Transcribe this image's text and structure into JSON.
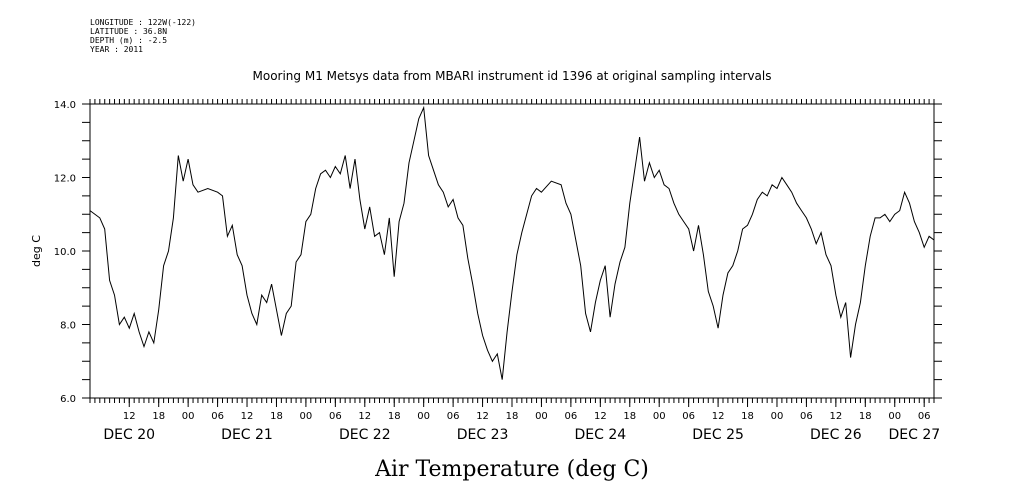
{
  "header": {
    "longitude": "LONGITUDE : 122W(-122)",
    "latitude": "LATITUDE : 36.8N",
    "depth": "DEPTH (m) : -2.5",
    "year": "YEAR : 2011"
  },
  "chart_data": {
    "type": "line",
    "title": "Mooring M1 Metsys data from MBARI instrument id 1396 at original sampling intervals",
    "xlabel": "Air Temperature (deg C)",
    "ylabel": "deg C",
    "ylim": [
      6.0,
      14.0
    ],
    "yticks": [
      "6.0",
      "8.0",
      "10.0",
      "12.0",
      "14.0"
    ],
    "xlim": [
      "2011-12-20T04:00",
      "2011-12-27T08:00"
    ],
    "hour_ticks": [
      {
        "t": "2011-12-20T12:00",
        "label": "12"
      },
      {
        "t": "2011-12-20T18:00",
        "label": "18"
      },
      {
        "t": "2011-12-21T00:00",
        "label": "00"
      },
      {
        "t": "2011-12-21T06:00",
        "label": "06"
      },
      {
        "t": "2011-12-21T12:00",
        "label": "12"
      },
      {
        "t": "2011-12-21T18:00",
        "label": "18"
      },
      {
        "t": "2011-12-22T00:00",
        "label": "00"
      },
      {
        "t": "2011-12-22T06:00",
        "label": "06"
      },
      {
        "t": "2011-12-22T12:00",
        "label": "12"
      },
      {
        "t": "2011-12-22T18:00",
        "label": "18"
      },
      {
        "t": "2011-12-23T00:00",
        "label": "00"
      },
      {
        "t": "2011-12-23T06:00",
        "label": "06"
      },
      {
        "t": "2011-12-23T12:00",
        "label": "12"
      },
      {
        "t": "2011-12-23T18:00",
        "label": "18"
      },
      {
        "t": "2011-12-24T00:00",
        "label": "00"
      },
      {
        "t": "2011-12-24T06:00",
        "label": "06"
      },
      {
        "t": "2011-12-24T12:00",
        "label": "12"
      },
      {
        "t": "2011-12-24T18:00",
        "label": "18"
      },
      {
        "t": "2011-12-25T00:00",
        "label": "00"
      },
      {
        "t": "2011-12-25T06:00",
        "label": "06"
      },
      {
        "t": "2011-12-25T12:00",
        "label": "12"
      },
      {
        "t": "2011-12-25T18:00",
        "label": "18"
      },
      {
        "t": "2011-12-26T00:00",
        "label": "00"
      },
      {
        "t": "2011-12-26T06:00",
        "label": "06"
      },
      {
        "t": "2011-12-26T12:00",
        "label": "12"
      },
      {
        "t": "2011-12-26T18:00",
        "label": "18"
      },
      {
        "t": "2011-12-27T00:00",
        "label": "00"
      },
      {
        "t": "2011-12-27T06:00",
        "label": "06"
      }
    ],
    "day_labels": [
      {
        "t": "2011-12-20T12:00",
        "label": "DEC 20"
      },
      {
        "t": "2011-12-21T12:00",
        "label": "DEC 21"
      },
      {
        "t": "2011-12-22T12:00",
        "label": "DEC 22"
      },
      {
        "t": "2011-12-23T12:00",
        "label": "DEC 23"
      },
      {
        "t": "2011-12-24T12:00",
        "label": "DEC 24"
      },
      {
        "t": "2011-12-25T12:00",
        "label": "DEC 25"
      },
      {
        "t": "2011-12-26T12:00",
        "label": "DEC 26"
      },
      {
        "t": "2011-12-27T04:00",
        "label": "DEC 27"
      }
    ],
    "grid": false,
    "series": [
      {
        "color": "#000000",
        "points": [
          [
            "2011-12-20T04:00",
            11.1
          ],
          [
            "2011-12-20T06:00",
            10.9
          ],
          [
            "2011-12-20T07:00",
            10.6
          ],
          [
            "2011-12-20T08:00",
            9.2
          ],
          [
            "2011-12-20T09:00",
            8.8
          ],
          [
            "2011-12-20T10:00",
            8.0
          ],
          [
            "2011-12-20T11:00",
            8.2
          ],
          [
            "2011-12-20T12:00",
            7.9
          ],
          [
            "2011-12-20T13:00",
            8.3
          ],
          [
            "2011-12-20T14:00",
            7.8
          ],
          [
            "2011-12-20T15:00",
            7.4
          ],
          [
            "2011-12-20T16:00",
            7.8
          ],
          [
            "2011-12-20T17:00",
            7.5
          ],
          [
            "2011-12-20T18:00",
            8.4
          ],
          [
            "2011-12-20T19:00",
            9.6
          ],
          [
            "2011-12-20T20:00",
            10.0
          ],
          [
            "2011-12-20T21:00",
            10.9
          ],
          [
            "2011-12-20T22:00",
            12.6
          ],
          [
            "2011-12-20T23:00",
            11.9
          ],
          [
            "2011-12-21T00:00",
            12.5
          ],
          [
            "2011-12-21T01:00",
            11.8
          ],
          [
            "2011-12-21T02:00",
            11.6
          ],
          [
            "2011-12-21T04:00",
            11.7
          ],
          [
            "2011-12-21T06:00",
            11.6
          ],
          [
            "2011-12-21T07:00",
            11.5
          ],
          [
            "2011-12-21T08:00",
            10.4
          ],
          [
            "2011-12-21T09:00",
            10.7
          ],
          [
            "2011-12-21T10:00",
            9.9
          ],
          [
            "2011-12-21T11:00",
            9.6
          ],
          [
            "2011-12-21T12:00",
            8.8
          ],
          [
            "2011-12-21T13:00",
            8.3
          ],
          [
            "2011-12-21T14:00",
            8.0
          ],
          [
            "2011-12-21T15:00",
            8.8
          ],
          [
            "2011-12-21T16:00",
            8.6
          ],
          [
            "2011-12-21T17:00",
            9.1
          ],
          [
            "2011-12-21T18:00",
            8.4
          ],
          [
            "2011-12-21T19:00",
            7.7
          ],
          [
            "2011-12-21T20:00",
            8.3
          ],
          [
            "2011-12-21T21:00",
            8.5
          ],
          [
            "2011-12-21T22:00",
            9.7
          ],
          [
            "2011-12-21T23:00",
            9.9
          ],
          [
            "2011-12-22T00:00",
            10.8
          ],
          [
            "2011-12-22T01:00",
            11.0
          ],
          [
            "2011-12-22T02:00",
            11.7
          ],
          [
            "2011-12-22T03:00",
            12.1
          ],
          [
            "2011-12-22T04:00",
            12.2
          ],
          [
            "2011-12-22T05:00",
            12.0
          ],
          [
            "2011-12-22T06:00",
            12.3
          ],
          [
            "2011-12-22T07:00",
            12.1
          ],
          [
            "2011-12-22T08:00",
            12.6
          ],
          [
            "2011-12-22T09:00",
            11.7
          ],
          [
            "2011-12-22T10:00",
            12.5
          ],
          [
            "2011-12-22T11:00",
            11.4
          ],
          [
            "2011-12-22T12:00",
            10.6
          ],
          [
            "2011-12-22T13:00",
            11.2
          ],
          [
            "2011-12-22T14:00",
            10.4
          ],
          [
            "2011-12-22T15:00",
            10.5
          ],
          [
            "2011-12-22T16:00",
            9.9
          ],
          [
            "2011-12-22T17:00",
            10.9
          ],
          [
            "2011-12-22T18:00",
            9.3
          ],
          [
            "2011-12-22T19:00",
            10.8
          ],
          [
            "2011-12-22T20:00",
            11.3
          ],
          [
            "2011-12-22T21:00",
            12.4
          ],
          [
            "2011-12-22T22:00",
            13.0
          ],
          [
            "2011-12-22T23:00",
            13.6
          ],
          [
            "2011-12-23T00:00",
            13.9
          ],
          [
            "2011-12-23T01:00",
            12.6
          ],
          [
            "2011-12-23T02:00",
            12.2
          ],
          [
            "2011-12-23T03:00",
            11.8
          ],
          [
            "2011-12-23T04:00",
            11.6
          ],
          [
            "2011-12-23T05:00",
            11.2
          ],
          [
            "2011-12-23T06:00",
            11.4
          ],
          [
            "2011-12-23T07:00",
            10.9
          ],
          [
            "2011-12-23T08:00",
            10.7
          ],
          [
            "2011-12-23T09:00",
            9.8
          ],
          [
            "2011-12-23T10:00",
            9.1
          ],
          [
            "2011-12-23T11:00",
            8.3
          ],
          [
            "2011-12-23T12:00",
            7.7
          ],
          [
            "2011-12-23T13:00",
            7.3
          ],
          [
            "2011-12-23T14:00",
            7.0
          ],
          [
            "2011-12-23T15:00",
            7.2
          ],
          [
            "2011-12-23T16:00",
            6.5
          ],
          [
            "2011-12-23T17:00",
            7.8
          ],
          [
            "2011-12-23T18:00",
            8.9
          ],
          [
            "2011-12-23T19:00",
            9.9
          ],
          [
            "2011-12-23T20:00",
            10.5
          ],
          [
            "2011-12-23T21:00",
            11.0
          ],
          [
            "2011-12-23T22:00",
            11.5
          ],
          [
            "2011-12-23T23:00",
            11.7
          ],
          [
            "2011-12-24T00:00",
            11.6
          ],
          [
            "2011-12-24T02:00",
            11.9
          ],
          [
            "2011-12-24T04:00",
            11.8
          ],
          [
            "2011-12-24T05:00",
            11.3
          ],
          [
            "2011-12-24T06:00",
            11.0
          ],
          [
            "2011-12-24T07:00",
            10.3
          ],
          [
            "2011-12-24T08:00",
            9.6
          ],
          [
            "2011-12-24T09:00",
            8.3
          ],
          [
            "2011-12-24T10:00",
            7.8
          ],
          [
            "2011-12-24T11:00",
            8.6
          ],
          [
            "2011-12-24T12:00",
            9.2
          ],
          [
            "2011-12-24T13:00",
            9.6
          ],
          [
            "2011-12-24T14:00",
            8.2
          ],
          [
            "2011-12-24T15:00",
            9.1
          ],
          [
            "2011-12-24T16:00",
            9.7
          ],
          [
            "2011-12-24T17:00",
            10.1
          ],
          [
            "2011-12-24T18:00",
            11.3
          ],
          [
            "2011-12-24T19:00",
            12.2
          ],
          [
            "2011-12-24T20:00",
            13.1
          ],
          [
            "2011-12-24T21:00",
            11.9
          ],
          [
            "2011-12-24T22:00",
            12.4
          ],
          [
            "2011-12-24T23:00",
            12.0
          ],
          [
            "2011-12-25T00:00",
            12.2
          ],
          [
            "2011-12-25T01:00",
            11.8
          ],
          [
            "2011-12-25T02:00",
            11.7
          ],
          [
            "2011-12-25T03:00",
            11.3
          ],
          [
            "2011-12-25T04:00",
            11.0
          ],
          [
            "2011-12-25T05:00",
            10.8
          ],
          [
            "2011-12-25T06:00",
            10.6
          ],
          [
            "2011-12-25T07:00",
            10.0
          ],
          [
            "2011-12-25T08:00",
            10.7
          ],
          [
            "2011-12-25T09:00",
            9.9
          ],
          [
            "2011-12-25T10:00",
            8.9
          ],
          [
            "2011-12-25T11:00",
            8.5
          ],
          [
            "2011-12-25T12:00",
            7.9
          ],
          [
            "2011-12-25T13:00",
            8.8
          ],
          [
            "2011-12-25T14:00",
            9.4
          ],
          [
            "2011-12-25T15:00",
            9.6
          ],
          [
            "2011-12-25T16:00",
            10.0
          ],
          [
            "2011-12-25T17:00",
            10.6
          ],
          [
            "2011-12-25T18:00",
            10.7
          ],
          [
            "2011-12-25T19:00",
            11.0
          ],
          [
            "2011-12-25T20:00",
            11.4
          ],
          [
            "2011-12-25T21:00",
            11.6
          ],
          [
            "2011-12-25T22:00",
            11.5
          ],
          [
            "2011-12-25T23:00",
            11.8
          ],
          [
            "2011-12-26T00:00",
            11.7
          ],
          [
            "2011-12-26T01:00",
            12.0
          ],
          [
            "2011-12-26T02:00",
            11.8
          ],
          [
            "2011-12-26T03:00",
            11.6
          ],
          [
            "2011-12-26T04:00",
            11.3
          ],
          [
            "2011-12-26T05:00",
            11.1
          ],
          [
            "2011-12-26T06:00",
            10.9
          ],
          [
            "2011-12-26T07:00",
            10.6
          ],
          [
            "2011-12-26T08:00",
            10.2
          ],
          [
            "2011-12-26T09:00",
            10.5
          ],
          [
            "2011-12-26T10:00",
            9.9
          ],
          [
            "2011-12-26T11:00",
            9.6
          ],
          [
            "2011-12-26T12:00",
            8.8
          ],
          [
            "2011-12-26T13:00",
            8.2
          ],
          [
            "2011-12-26T14:00",
            8.6
          ],
          [
            "2011-12-26T15:00",
            7.1
          ],
          [
            "2011-12-26T16:00",
            8.0
          ],
          [
            "2011-12-26T17:00",
            8.6
          ],
          [
            "2011-12-26T18:00",
            9.6
          ],
          [
            "2011-12-26T19:00",
            10.4
          ],
          [
            "2011-12-26T20:00",
            10.9
          ],
          [
            "2011-12-26T21:00",
            10.9
          ],
          [
            "2011-12-26T22:00",
            11.0
          ],
          [
            "2011-12-26T23:00",
            10.8
          ],
          [
            "2011-12-27T00:00",
            11.0
          ],
          [
            "2011-12-27T01:00",
            11.1
          ],
          [
            "2011-12-27T02:00",
            11.6
          ],
          [
            "2011-12-27T03:00",
            11.3
          ],
          [
            "2011-12-27T04:00",
            10.8
          ],
          [
            "2011-12-27T05:00",
            10.5
          ],
          [
            "2011-12-27T06:00",
            10.1
          ],
          [
            "2011-12-27T07:00",
            10.4
          ],
          [
            "2011-12-27T08:00",
            10.3
          ]
        ]
      }
    ]
  }
}
